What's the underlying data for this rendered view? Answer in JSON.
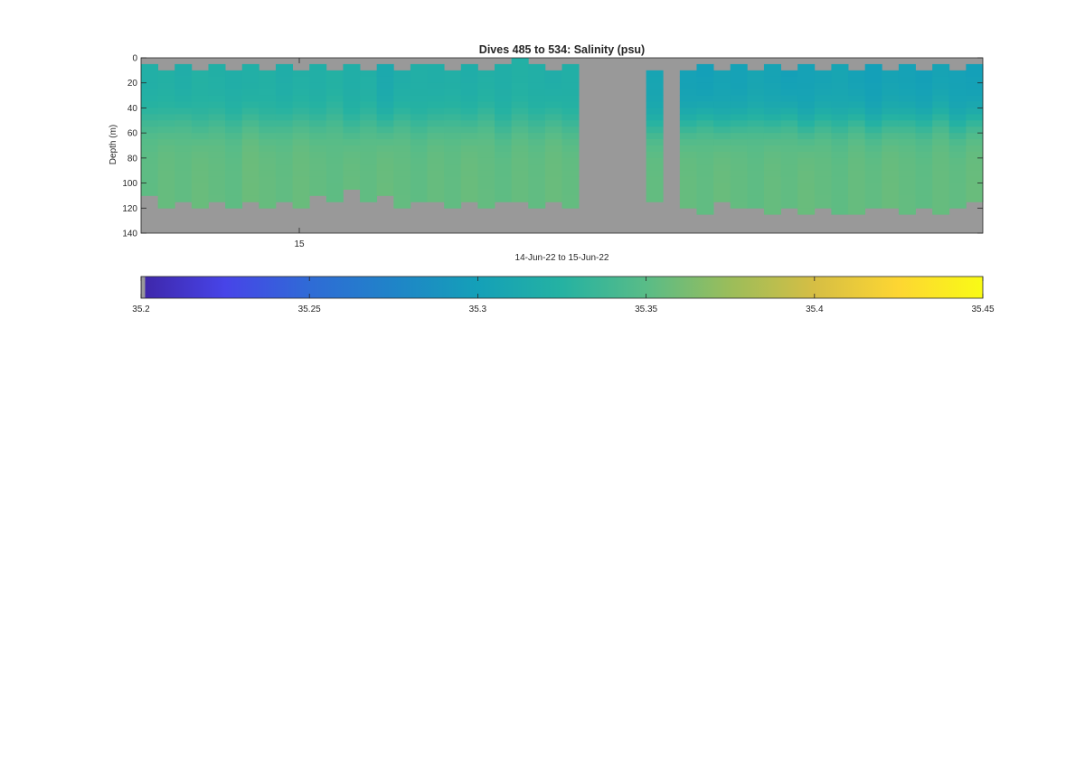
{
  "chart_data": {
    "type": "heatmap",
    "title": "Dives 485 to 534: Salinity (psu)",
    "xlabel": "14-Jun-22 to 15-Jun-22",
    "ylabel": "Depth (m)",
    "x_ticks": [
      "15"
    ],
    "y_ticks": [
      0,
      20,
      40,
      60,
      80,
      100,
      120,
      140
    ],
    "ylim": [
      0,
      140
    ],
    "y_reversed": true,
    "grid": false,
    "legend": "colorbar-bottom",
    "missing_color": "#999999",
    "colorbar": {
      "min": 35.2,
      "max": 35.45,
      "ticks": [
        "35.2",
        "35.25",
        "35.3",
        "35.35",
        "35.4",
        "35.45"
      ],
      "colormap": [
        "#3e26a8",
        "#4744e8",
        "#2f6bd6",
        "#1f84c8",
        "#14a0b8",
        "#25b2a2",
        "#59bc87",
        "#9bbd5a",
        "#d6be44",
        "#fdd632",
        "#f9fb15"
      ]
    },
    "profiles": {
      "count": 50,
      "depth_step_m": 5,
      "missing_dives": [
        26,
        27,
        28,
        29,
        31
      ],
      "start_depth_m": [
        5,
        10,
        5,
        10,
        5,
        10,
        5,
        10,
        5,
        10,
        5,
        10,
        5,
        10,
        5,
        10,
        5,
        5,
        10,
        5,
        10,
        5,
        0,
        5,
        10,
        5,
        10,
        5,
        10,
        5,
        10,
        5,
        10,
        5,
        10,
        5,
        10,
        5,
        10,
        5,
        10,
        5,
        10,
        5,
        10,
        5,
        10,
        5,
        10,
        5
      ],
      "max_depth_m": [
        110,
        120,
        115,
        120,
        115,
        120,
        115,
        118,
        112,
        118,
        110,
        115,
        105,
        115,
        108,
        118,
        112,
        115,
        120,
        115,
        118,
        112,
        115,
        120,
        115,
        118,
        120,
        115,
        112,
        118,
        115,
        120,
        118,
        122,
        115,
        120,
        118,
        125,
        120,
        122,
        118,
        122,
        125,
        120,
        118,
        122,
        120,
        125,
        120,
        115
      ],
      "surface_salinity": [
        35.32,
        35.322,
        35.318,
        35.323,
        35.321,
        35.319,
        35.32,
        35.322,
        35.318,
        35.321,
        35.32,
        35.323,
        35.319,
        35.321,
        35.312,
        35.318,
        35.32,
        35.319,
        35.32,
        35.318,
        35.321,
        35.319,
        35.322,
        35.32,
        35.318,
        35.32,
        35.318,
        35.316,
        35.306,
        35.3,
        35.306,
        35.304,
        35.302,
        35.3,
        35.304,
        35.302,
        35.306,
        35.304,
        35.3,
        35.302,
        35.304,
        35.306,
        35.302,
        35.3,
        35.304,
        35.302,
        35.3,
        35.304,
        35.302,
        35.3
      ],
      "deep_salinity": [
        35.352,
        35.355,
        35.353,
        35.356,
        35.354,
        35.352,
        35.357,
        35.355,
        35.353,
        35.356,
        35.354,
        35.352,
        35.355,
        35.353,
        35.356,
        35.354,
        35.352,
        35.355,
        35.353,
        35.356,
        35.354,
        35.352,
        35.355,
        35.353,
        35.356,
        35.354,
        35.352,
        35.355,
        35.353,
        35.356,
        35.354,
        35.352,
        35.355,
        35.353,
        35.356,
        35.354,
        35.352,
        35.355,
        35.353,
        35.356,
        35.354,
        35.352,
        35.355,
        35.353,
        35.356,
        35.354,
        35.352,
        35.355,
        35.353,
        35.356
      ],
      "pycnocline_depth_m": [
        50,
        52,
        48,
        55,
        50,
        53,
        49,
        54,
        51,
        50,
        52,
        48,
        55,
        50,
        53,
        49,
        54,
        51,
        50,
        52,
        48,
        55,
        50,
        53,
        49,
        54,
        51,
        50,
        52,
        48,
        55,
        50,
        53,
        49,
        54,
        51,
        50,
        52,
        48,
        55,
        50,
        53,
        49,
        54,
        51,
        50,
        52,
        48,
        55,
        50
      ]
    }
  }
}
